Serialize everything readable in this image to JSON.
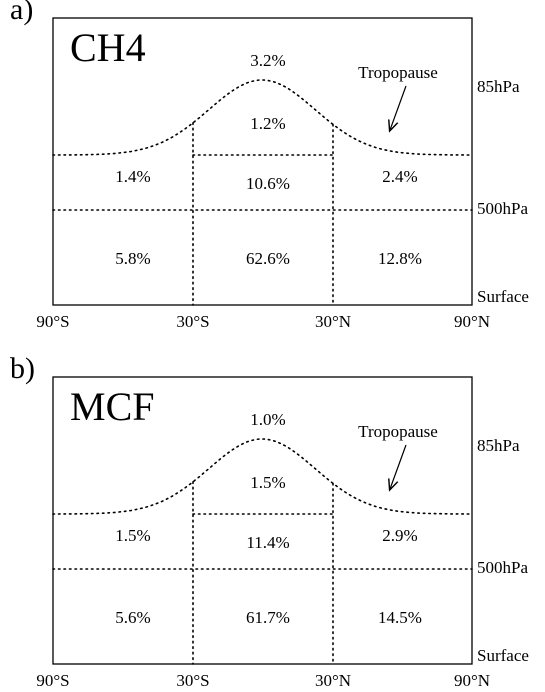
{
  "panels": [
    {
      "label": "a)",
      "name": "CH4",
      "tropopause": "Tropopause",
      "cells": [
        "3.2%",
        "1.2%",
        "1.4%",
        "10.6%",
        "2.4%",
        "5.8%",
        "62.6%",
        "12.8%"
      ],
      "pressure_levels": [
        "85hPa",
        "500hPa",
        "Surface"
      ],
      "latitudes": [
        "90°S",
        "30°S",
        "30°N",
        "90°N"
      ]
    },
    {
      "label": "b)",
      "name": "MCF",
      "tropopause": "Tropopause",
      "cells": [
        "1.0%",
        "1.5%",
        "1.5%",
        "11.4%",
        "2.9%",
        "5.6%",
        "61.7%",
        "14.5%"
      ],
      "pressure_levels": [
        "85hPa",
        "500hPa",
        "Surface"
      ],
      "latitudes": [
        "90°S",
        "30°S",
        "30°N",
        "90°N"
      ]
    }
  ]
}
